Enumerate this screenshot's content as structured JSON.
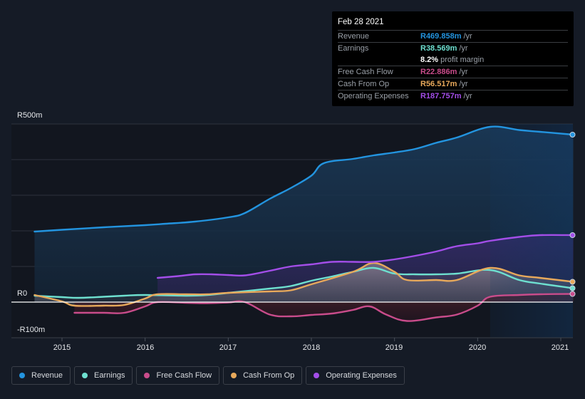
{
  "tooltip": {
    "date": "Feb 28 2021",
    "rows": [
      {
        "label": "Revenue",
        "value": "R469.858m",
        "unit": "/yr",
        "color": "#2394df"
      },
      {
        "label": "Earnings",
        "value": "R38.569m",
        "unit": "/yr",
        "color": "#6ee0d0"
      },
      {
        "label": "",
        "value": "8.2%",
        "unit": "profit margin",
        "color": "#ffffff"
      },
      {
        "label": "Free Cash Flow",
        "value": "R22.886m",
        "unit": "/yr",
        "color": "#c94c8b"
      },
      {
        "label": "Cash From Op",
        "value": "R56.517m",
        "unit": "/yr",
        "color": "#e8a95b"
      },
      {
        "label": "Operating Expenses",
        "value": "R187.757m",
        "unit": "/yr",
        "color": "#a34ee8"
      }
    ]
  },
  "legend": [
    {
      "label": "Revenue",
      "color": "#2394df"
    },
    {
      "label": "Earnings",
      "color": "#6ee0d0"
    },
    {
      "label": "Free Cash Flow",
      "color": "#c94c8b"
    },
    {
      "label": "Cash From Op",
      "color": "#e8a95b"
    },
    {
      "label": "Operating Expenses",
      "color": "#a34ee8"
    }
  ],
  "chart_data": {
    "type": "area",
    "title": "",
    "xlabel": "",
    "ylabel": "",
    "y_tick_labels": [
      "R500m",
      "R0",
      "-R100m"
    ],
    "x_tick_labels": [
      "2015",
      "2016",
      "2017",
      "2018",
      "2019",
      "2020",
      "2021"
    ],
    "ylim": [
      -100,
      500
    ],
    "xlim": [
      2014.6,
      2021.15
    ],
    "grid": true,
    "legend_position": "bottom",
    "highlight_from": 2020.15,
    "series": [
      {
        "name": "Revenue",
        "color": "#2394df",
        "points": [
          [
            2014.67,
            198
          ],
          [
            2015.0,
            203
          ],
          [
            2015.5,
            210
          ],
          [
            2016.0,
            216
          ],
          [
            2016.25,
            220
          ],
          [
            2016.6,
            226
          ],
          [
            2017.0,
            238
          ],
          [
            2017.2,
            250
          ],
          [
            2017.5,
            290
          ],
          [
            2017.75,
            320
          ],
          [
            2018.0,
            355
          ],
          [
            2018.15,
            390
          ],
          [
            2018.5,
            402
          ],
          [
            2018.75,
            412
          ],
          [
            2019.0,
            420
          ],
          [
            2019.25,
            430
          ],
          [
            2019.5,
            447
          ],
          [
            2019.75,
            462
          ],
          [
            2020.15,
            492
          ],
          [
            2020.5,
            483
          ],
          [
            2020.75,
            478
          ],
          [
            2021.15,
            470
          ]
        ]
      },
      {
        "name": "Earnings",
        "color": "#6ee0d0",
        "points": [
          [
            2014.67,
            18
          ],
          [
            2015.0,
            14
          ],
          [
            2015.2,
            12
          ],
          [
            2015.5,
            15
          ],
          [
            2015.75,
            18
          ],
          [
            2016.0,
            20
          ],
          [
            2016.5,
            18
          ],
          [
            2016.75,
            20
          ],
          [
            2017.0,
            26
          ],
          [
            2017.5,
            38
          ],
          [
            2017.75,
            45
          ],
          [
            2018.0,
            60
          ],
          [
            2018.25,
            72
          ],
          [
            2018.5,
            85
          ],
          [
            2018.75,
            96
          ],
          [
            2019.0,
            80
          ],
          [
            2019.25,
            78
          ],
          [
            2019.5,
            78
          ],
          [
            2019.75,
            80
          ],
          [
            2020.15,
            90
          ],
          [
            2020.5,
            62
          ],
          [
            2020.75,
            52
          ],
          [
            2021.15,
            39
          ]
        ]
      },
      {
        "name": "Free Cash Flow",
        "color": "#c94c8b",
        "points": [
          [
            2015.15,
            -30
          ],
          [
            2015.5,
            -30
          ],
          [
            2015.75,
            -30
          ],
          [
            2016.0,
            -12
          ],
          [
            2016.15,
            0
          ],
          [
            2016.5,
            -2
          ],
          [
            2016.75,
            -3
          ],
          [
            2017.0,
            -1
          ],
          [
            2017.2,
            0
          ],
          [
            2017.5,
            -35
          ],
          [
            2017.75,
            -40
          ],
          [
            2018.0,
            -36
          ],
          [
            2018.25,
            -32
          ],
          [
            2018.5,
            -22
          ],
          [
            2018.7,
            -12
          ],
          [
            2018.9,
            -35
          ],
          [
            2019.15,
            -53
          ],
          [
            2019.5,
            -43
          ],
          [
            2019.75,
            -35
          ],
          [
            2020.0,
            -10
          ],
          [
            2020.15,
            15
          ],
          [
            2020.5,
            20
          ],
          [
            2020.75,
            22
          ],
          [
            2021.15,
            23
          ]
        ]
      },
      {
        "name": "Cash From Op",
        "color": "#e8a95b",
        "points": [
          [
            2014.67,
            20
          ],
          [
            2015.0,
            2
          ],
          [
            2015.15,
            -10
          ],
          [
            2015.5,
            -10
          ],
          [
            2015.75,
            -8
          ],
          [
            2016.0,
            10
          ],
          [
            2016.15,
            22
          ],
          [
            2016.5,
            22
          ],
          [
            2016.75,
            22
          ],
          [
            2017.0,
            26
          ],
          [
            2017.5,
            30
          ],
          [
            2017.75,
            33
          ],
          [
            2018.0,
            50
          ],
          [
            2018.5,
            85
          ],
          [
            2018.75,
            110
          ],
          [
            2019.0,
            85
          ],
          [
            2019.15,
            62
          ],
          [
            2019.5,
            62
          ],
          [
            2019.75,
            62
          ],
          [
            2020.15,
            96
          ],
          [
            2020.5,
            75
          ],
          [
            2020.75,
            68
          ],
          [
            2021.15,
            57
          ]
        ]
      },
      {
        "name": "Operating Expenses",
        "color": "#a34ee8",
        "points": [
          [
            2016.15,
            68
          ],
          [
            2016.4,
            73
          ],
          [
            2016.6,
            78
          ],
          [
            2016.8,
            78
          ],
          [
            2017.0,
            76
          ],
          [
            2017.2,
            75
          ],
          [
            2017.5,
            88
          ],
          [
            2017.75,
            100
          ],
          [
            2018.0,
            106
          ],
          [
            2018.25,
            113
          ],
          [
            2018.5,
            113
          ],
          [
            2018.75,
            113
          ],
          [
            2019.0,
            120
          ],
          [
            2019.25,
            130
          ],
          [
            2019.5,
            142
          ],
          [
            2019.75,
            157
          ],
          [
            2020.0,
            165
          ],
          [
            2020.15,
            172
          ],
          [
            2020.5,
            183
          ],
          [
            2020.75,
            188
          ],
          [
            2021.15,
            188
          ]
        ]
      }
    ]
  }
}
